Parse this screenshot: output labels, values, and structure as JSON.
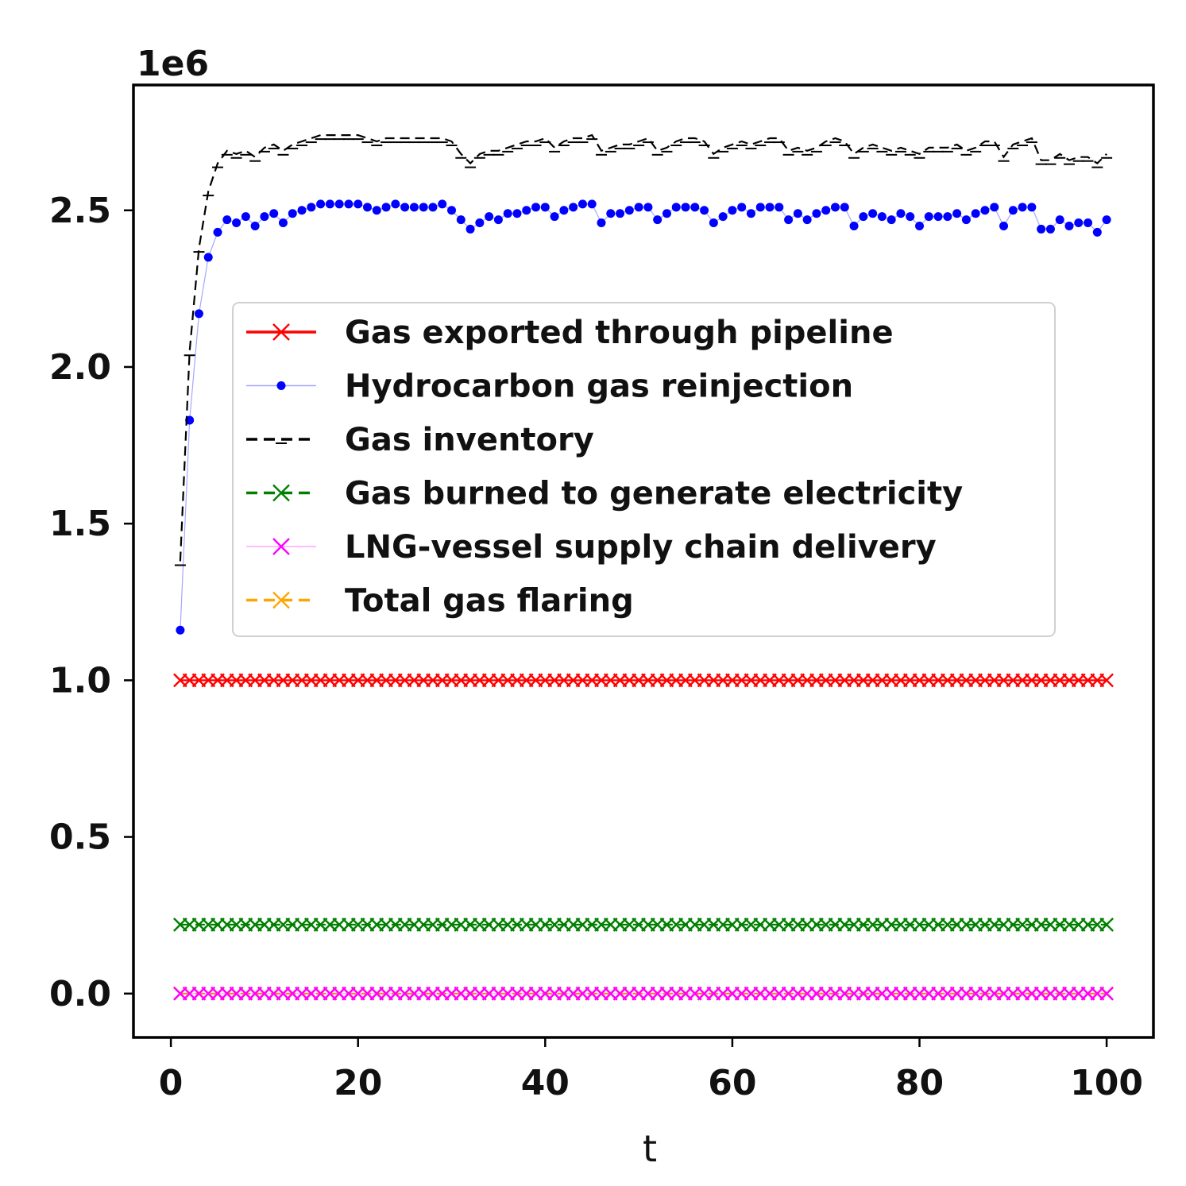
{
  "chart_data": {
    "type": "line",
    "title": "",
    "xlabel": "t",
    "ylabel": "",
    "y_offset_text": "1e6",
    "xlim": [
      -4,
      105
    ],
    "ylim": [
      -0.14,
      2.9
    ],
    "xticks": [
      0,
      20,
      40,
      60,
      80,
      100
    ],
    "xtick_labels": [
      "0",
      "20",
      "40",
      "60",
      "80",
      "100"
    ],
    "yticks": [
      0.0,
      0.5,
      1.0,
      1.5,
      2.0,
      2.5
    ],
    "ytick_labels": [
      "0.0",
      "0.5",
      "1.0",
      "1.5",
      "2.0",
      "2.5"
    ],
    "legend_position": "center",
    "grid": false,
    "x": [
      1,
      2,
      3,
      4,
      5,
      6,
      7,
      8,
      9,
      10,
      11,
      12,
      13,
      14,
      15,
      16,
      17,
      18,
      19,
      20,
      21,
      22,
      23,
      24,
      25,
      26,
      27,
      28,
      29,
      30,
      31,
      32,
      33,
      34,
      35,
      36,
      37,
      38,
      39,
      40,
      41,
      42,
      43,
      44,
      45,
      46,
      47,
      48,
      49,
      50,
      51,
      52,
      53,
      54,
      55,
      56,
      57,
      58,
      59,
      60,
      61,
      62,
      63,
      64,
      65,
      66,
      67,
      68,
      69,
      70,
      71,
      72,
      73,
      74,
      75,
      76,
      77,
      78,
      79,
      80,
      81,
      82,
      83,
      84,
      85,
      86,
      87,
      88,
      89,
      90,
      91,
      92,
      93,
      94,
      95,
      96,
      97,
      98,
      99,
      100
    ],
    "series": [
      {
        "name": "Gas exported through pipeline",
        "color": "#ff0000",
        "linestyle": "solid",
        "marker": "x",
        "constant": 1.0
      },
      {
        "name": "Hydrocarbon gas reinjection",
        "color": "#0000ff",
        "linestyle": "solid-thin",
        "marker": "dot",
        "values": [
          1.16,
          1.83,
          2.17,
          2.35,
          2.43,
          2.47,
          2.46,
          2.48,
          2.45,
          2.48,
          2.49,
          2.46,
          2.49,
          2.5,
          2.51,
          2.52,
          2.52,
          2.52,
          2.52,
          2.52,
          2.51,
          2.5,
          2.51,
          2.52,
          2.51,
          2.51,
          2.51,
          2.51,
          2.52,
          2.5,
          2.47,
          2.44,
          2.46,
          2.48,
          2.47,
          2.49,
          2.49,
          2.5,
          2.51,
          2.51,
          2.48,
          2.5,
          2.51,
          2.52,
          2.52,
          2.46,
          2.49,
          2.49,
          2.5,
          2.51,
          2.51,
          2.47,
          2.49,
          2.51,
          2.51,
          2.51,
          2.5,
          2.46,
          2.48,
          2.5,
          2.51,
          2.49,
          2.51,
          2.51,
          2.51,
          2.47,
          2.49,
          2.47,
          2.49,
          2.5,
          2.51,
          2.51,
          2.45,
          2.48,
          2.49,
          2.48,
          2.47,
          2.49,
          2.48,
          2.45,
          2.48,
          2.48,
          2.48,
          2.49,
          2.47,
          2.49,
          2.5,
          2.51,
          2.45,
          2.5,
          2.51,
          2.51,
          2.44,
          2.44,
          2.47,
          2.45,
          2.46,
          2.46,
          2.43,
          2.47
        ]
      },
      {
        "name": "Gas inventory",
        "color": "#000000",
        "linestyle": "dashed",
        "marker": "tick",
        "values": [
          1.38,
          2.05,
          2.38,
          2.56,
          2.65,
          2.69,
          2.68,
          2.69,
          2.67,
          2.7,
          2.71,
          2.69,
          2.71,
          2.72,
          2.73,
          2.74,
          2.74,
          2.74,
          2.74,
          2.74,
          2.73,
          2.72,
          2.73,
          2.73,
          2.73,
          2.73,
          2.73,
          2.73,
          2.73,
          2.72,
          2.68,
          2.65,
          2.68,
          2.69,
          2.69,
          2.7,
          2.71,
          2.72,
          2.72,
          2.73,
          2.7,
          2.72,
          2.73,
          2.73,
          2.74,
          2.69,
          2.7,
          2.71,
          2.71,
          2.72,
          2.73,
          2.69,
          2.7,
          2.72,
          2.73,
          2.73,
          2.72,
          2.68,
          2.7,
          2.71,
          2.72,
          2.71,
          2.72,
          2.73,
          2.73,
          2.69,
          2.7,
          2.69,
          2.7,
          2.72,
          2.73,
          2.72,
          2.68,
          2.7,
          2.71,
          2.7,
          2.69,
          2.7,
          2.69,
          2.68,
          2.7,
          2.7,
          2.7,
          2.71,
          2.69,
          2.7,
          2.72,
          2.72,
          2.67,
          2.71,
          2.72,
          2.73,
          2.66,
          2.66,
          2.68,
          2.66,
          2.67,
          2.67,
          2.65,
          2.68
        ]
      },
      {
        "name": "Gas burned to generate electricity",
        "color": "#008000",
        "linestyle": "dashed",
        "marker": "x",
        "constant": 0.22
      },
      {
        "name": "LNG-vessel supply chain delivery",
        "color": "#ff00ff",
        "linestyle": "solid-thin",
        "marker": "x",
        "constant": 0.0
      },
      {
        "name": "Total gas flaring",
        "color": "#ffa500",
        "linestyle": "dashed",
        "marker": "x",
        "constant": 0.0
      }
    ]
  }
}
